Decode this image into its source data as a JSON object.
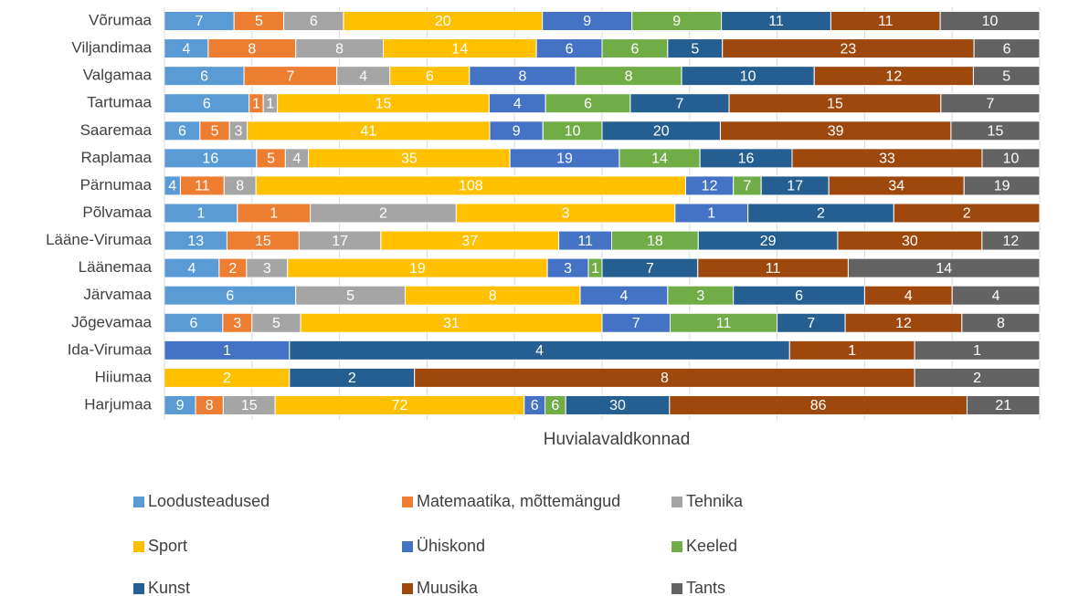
{
  "chart_data": {
    "type": "bar",
    "orientation": "horizontal",
    "stacked": "percent",
    "grid": true,
    "x_label": "Huvialavaldkonnad",
    "categories": [
      "Võrumaa",
      "Viljandimaa",
      "Valgamaa",
      "Tartumaa",
      "Saaremaa",
      "Raplamaa",
      "Pärnumaa",
      "Põlvamaa",
      "Lääne-Virumaa",
      "Läänemaa",
      "Järvamaa",
      "Jõgevamaa",
      "Ida-Virumaa",
      "Hiiumaa",
      "Harjumaa"
    ],
    "series": [
      {
        "name": "Loodusteadused",
        "color": "#5b9bd5",
        "values": [
          7,
          4,
          6,
          6,
          6,
          16,
          4,
          1,
          13,
          4,
          6,
          6,
          null,
          null,
          9
        ]
      },
      {
        "name": "Matemaatika, mõttemängud",
        "color": "#ed7d31",
        "values": [
          5,
          8,
          7,
          1,
          5,
          5,
          11,
          1,
          15,
          2,
          null,
          3,
          null,
          null,
          8
        ]
      },
      {
        "name": "Tehnika",
        "color": "#a5a5a5",
        "values": [
          6,
          8,
          4,
          1,
          3,
          4,
          8,
          2,
          17,
          3,
          5,
          5,
          null,
          null,
          15
        ]
      },
      {
        "name": "Sport",
        "color": "#ffc000",
        "values": [
          20,
          14,
          6,
          15,
          41,
          35,
          108,
          3,
          37,
          19,
          8,
          31,
          null,
          2,
          72
        ]
      },
      {
        "name": "Ühiskond",
        "color": "#4472c4",
        "values": [
          9,
          6,
          8,
          4,
          9,
          19,
          12,
          1,
          11,
          3,
          4,
          7,
          1,
          null,
          6
        ]
      },
      {
        "name": "Keeled",
        "color": "#70ad47",
        "values": [
          9,
          6,
          8,
          6,
          10,
          14,
          7,
          null,
          18,
          1,
          3,
          11,
          null,
          null,
          6
        ]
      },
      {
        "name": "Kunst",
        "color": "#255e91",
        "values": [
          11,
          5,
          10,
          7,
          20,
          16,
          17,
          2,
          29,
          7,
          6,
          7,
          4,
          2,
          30
        ]
      },
      {
        "name": "Muusika",
        "color": "#9e480e",
        "values": [
          11,
          23,
          12,
          15,
          39,
          33,
          34,
          2,
          30,
          11,
          4,
          12,
          1,
          8,
          86
        ]
      },
      {
        "name": "Tants",
        "color": "#636363",
        "values": [
          10,
          6,
          5,
          7,
          15,
          10,
          19,
          null,
          12,
          14,
          4,
          8,
          1,
          2,
          21
        ]
      }
    ]
  }
}
